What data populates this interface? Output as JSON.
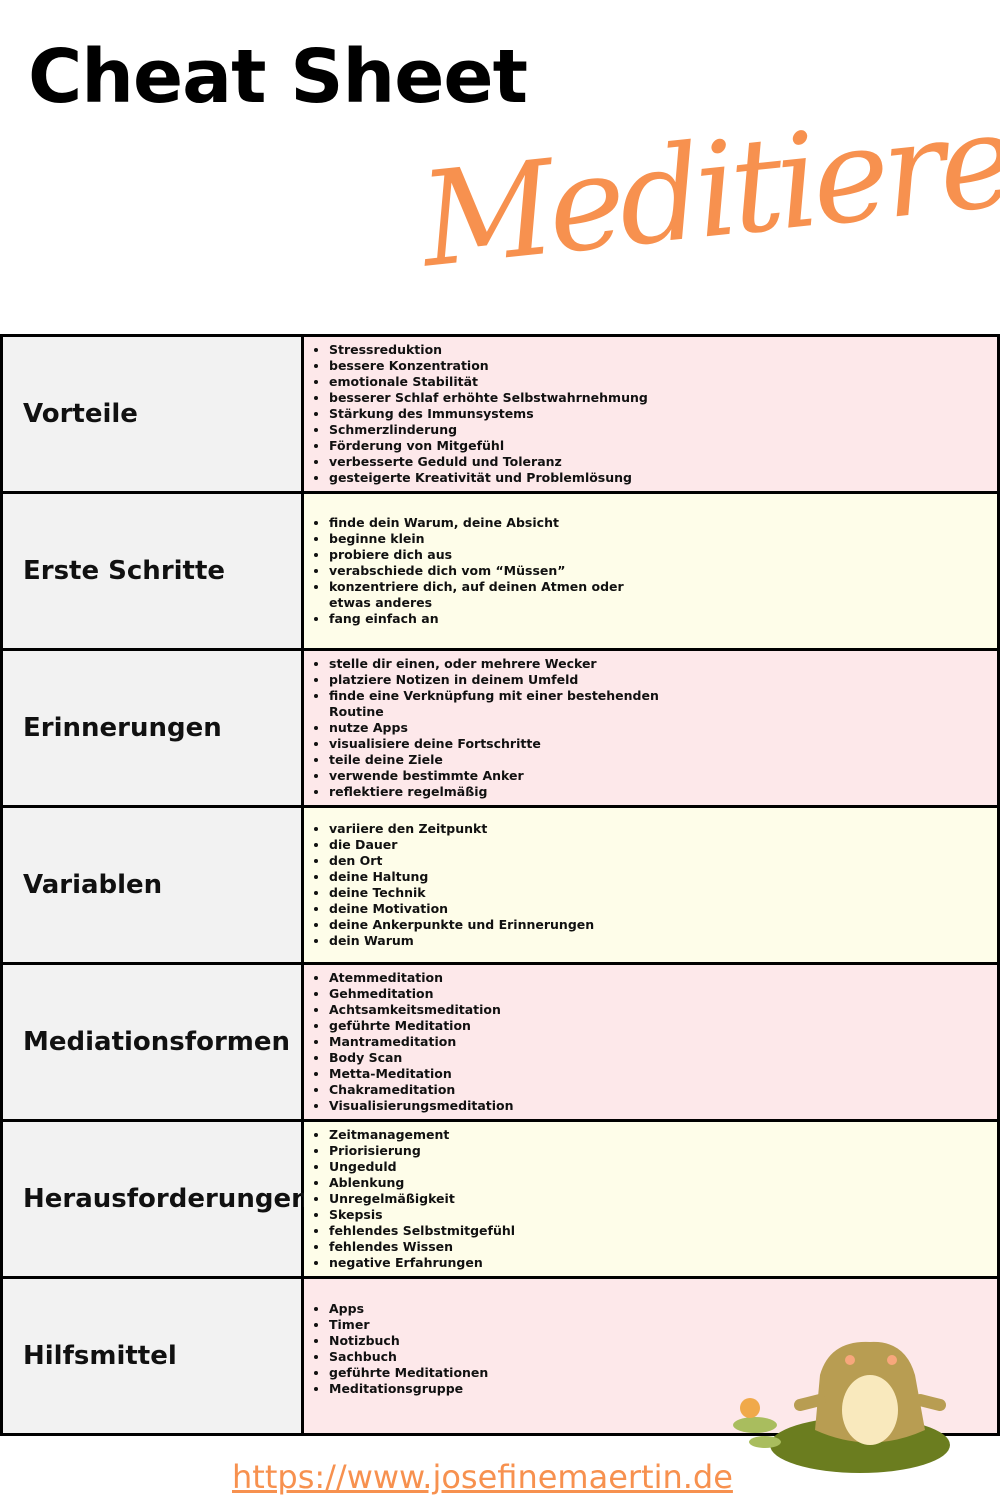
{
  "header": {
    "title": "Cheat Sheet",
    "script_title": "Meditieren"
  },
  "rows": [
    {
      "label": "Vorteile",
      "items": [
        "Stressreduktion",
        "bessere Konzentration",
        "emotionale Stabilität",
        "besserer Schlaf erhöhte Selbstwahrnehmung",
        "Stärkung des Immunsystems",
        "Schmerzlinderung",
        "Förderung von Mitgefühl",
        "verbesserte Geduld und Toleranz",
        "gesteigerte Kreativität und Problemlösung"
      ]
    },
    {
      "label": "Erste Schritte",
      "items": [
        "finde dein Warum, deine Absicht",
        "beginne klein",
        "probiere dich aus",
        "verabschiede dich vom “Müssen”",
        "konzentriere dich, auf deinen Atmen oder etwas anderes",
        "fang einfach an"
      ]
    },
    {
      "label": "Erinnerungen",
      "items": [
        "stelle dir einen, oder mehrere Wecker",
        "platziere Notizen in deinem Umfeld",
        "finde eine Verknüpfung mit einer bestehenden Routine",
        "nutze Apps",
        "visualisiere deine Fortschritte",
        "teile deine Ziele",
        "verwende bestimmte Anker",
        "reflektiere regelmäßig"
      ]
    },
    {
      "label": "Variablen",
      "items": [
        "variiere den Zeitpunkt",
        "die Dauer",
        "den Ort",
        "deine Haltung",
        "deine Technik",
        "deine Motivation",
        "deine Ankerpunkte und Erinnerungen",
        "dein Warum"
      ]
    },
    {
      "label": "Mediationsformen",
      "items": [
        "Atemmeditation",
        "Gehmeditation",
        "Achtsamkeitsmeditation",
        "geführte Meditation",
        "Mantrameditation",
        "Body Scan",
        "Metta-Meditation",
        "Chakrameditation",
        "Visualisierungsmeditation"
      ]
    },
    {
      "label": "Herausforderungen",
      "items": [
        "Zeitmanagement",
        "Priorisierung",
        "Ungeduld",
        "Ablenkung",
        "Unregelmäßigkeit",
        "Skepsis",
        "fehlendes Selbstmitgefühl",
        "fehlendes Wissen",
        "negative Erfahrungen"
      ]
    },
    {
      "label": "Hilfsmittel",
      "items": [
        "Apps",
        "Timer",
        "Notizbuch",
        "Sachbuch",
        "geführte Meditationen",
        "Meditationsgruppe"
      ]
    }
  ],
  "footer": {
    "url": "https://www.josefinemaertin.de"
  },
  "colors": {
    "accent": "#f7914f",
    "pink": "#fde8ea",
    "yellow": "#fefde9",
    "label_bg": "#f2f2f2"
  }
}
